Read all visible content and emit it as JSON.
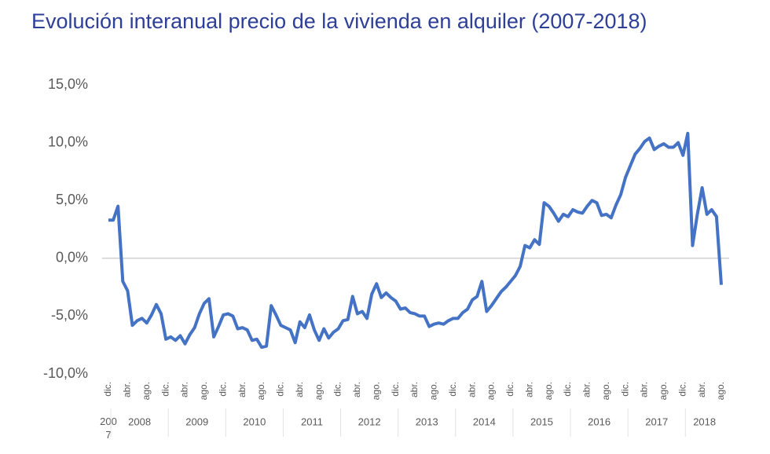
{
  "chart_data": {
    "type": "line",
    "title": "Evolución interanual precio de la vivienda en alquiler (2007-2018)",
    "categories": [
      "dic.",
      null,
      null,
      null,
      "abr.",
      null,
      null,
      null,
      "ago.",
      null,
      null,
      null,
      "dic.",
      null,
      null,
      null,
      "abr.",
      null,
      null,
      null,
      "ago.",
      null,
      null,
      null,
      "dic.",
      null,
      null,
      null,
      "abr.",
      null,
      null,
      null,
      "ago.",
      null,
      null,
      null,
      "dic.",
      null,
      null,
      null,
      "abr.",
      null,
      null,
      null,
      "ago.",
      null,
      null,
      null,
      "dic.",
      null,
      null,
      null,
      "abr.",
      null,
      null,
      null,
      "ago.",
      null,
      null,
      null,
      "dic.",
      null,
      null,
      null,
      "abr.",
      null,
      null,
      null,
      "ago.",
      null,
      null,
      null,
      "dic.",
      null,
      null,
      null,
      "abr.",
      null,
      null,
      null,
      "ago.",
      null,
      null,
      null,
      "dic.",
      null,
      null,
      null,
      "abr.",
      null,
      null,
      null,
      "ago.",
      null,
      null,
      null,
      "dic.",
      null,
      null,
      null,
      "abr.",
      null,
      null,
      null,
      "ago.",
      null,
      null,
      null,
      "dic.",
      null,
      null,
      null,
      "abr.",
      null,
      null,
      null,
      "ago.",
      null,
      null,
      null,
      "dic.",
      null,
      null,
      null,
      "abr.",
      null,
      null,
      null,
      "ago."
    ],
    "years": [
      "2007",
      "2008",
      "2009",
      "2010",
      "2011",
      "2012",
      "2013",
      "2014",
      "2015",
      "2016",
      "2017",
      "2018"
    ],
    "series": [
      {
        "color": "#4472c4",
        "values": [
          3.3,
          3.3,
          4.5,
          -2.0,
          -2.8,
          -5.8,
          -5.4,
          -5.2,
          -5.6,
          -4.9,
          -4.0,
          -4.8,
          -7.0,
          -6.8,
          -7.1,
          -6.7,
          -7.4,
          -6.6,
          -6.0,
          -4.8,
          -3.9,
          -3.5,
          -6.8,
          -5.9,
          -4.9,
          -4.8,
          -5.0,
          -6.1,
          -6.0,
          -6.2,
          -7.1,
          -7.0,
          -7.7,
          -7.6,
          -4.1,
          -4.9,
          -5.8,
          -6.0,
          -6.2,
          -7.3,
          -5.5,
          -6.0,
          -4.9,
          -6.2,
          -7.1,
          -6.1,
          -6.9,
          -6.4,
          -6.1,
          -5.4,
          -5.3,
          -3.3,
          -4.8,
          -4.6,
          -5.2,
          -3.1,
          -2.2,
          -3.4,
          -3.0,
          -3.4,
          -3.7,
          -4.4,
          -4.3,
          -4.7,
          -4.8,
          -5.0,
          -5.0,
          -5.9,
          -5.7,
          -5.6,
          -5.7,
          -5.4,
          -5.2,
          -5.2,
          -4.7,
          -4.4,
          -3.6,
          -3.3,
          -2.0,
          -4.6,
          -4.1,
          -3.5,
          -2.9,
          -2.5,
          -2.0,
          -1.5,
          -0.7,
          1.1,
          0.9,
          1.6,
          1.2,
          4.8,
          4.5,
          3.9,
          3.2,
          3.8,
          3.6,
          4.2,
          4.0,
          3.9,
          4.5,
          5.0,
          4.8,
          3.7,
          3.8,
          3.5,
          4.6,
          5.5,
          7.0,
          8.0,
          9.0,
          9.5,
          10.1,
          10.4,
          9.4,
          9.7,
          9.9,
          9.6,
          9.6,
          10.0,
          8.9,
          10.8,
          1.1,
          3.8,
          6.1,
          3.8,
          4.2,
          3.6,
          -2.3
        ]
      }
    ],
    "ylim": [
      -10,
      15
    ],
    "yticks": [
      {
        "value": -10,
        "label": "-10,0%"
      },
      {
        "value": -5,
        "label": "-5,0%"
      },
      {
        "value": 0,
        "label": "0,0%"
      },
      {
        "value": 5,
        "label": "5,0%"
      },
      {
        "value": 10,
        "label": "10,0%"
      },
      {
        "value": 15,
        "label": "15,0%"
      }
    ]
  }
}
